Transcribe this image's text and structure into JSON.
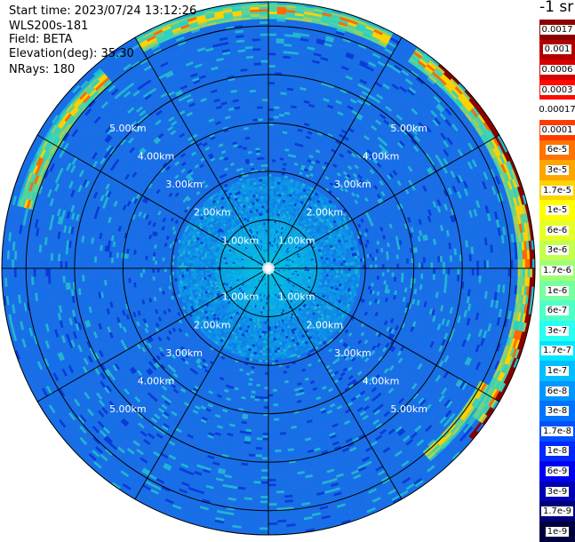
{
  "header": {
    "start_time": "Start time: 2023/07/24 13:12:26",
    "device": "WLS200s-181",
    "field": "Field: BETA",
    "elevation": "Elevation(deg): 35.30",
    "nrays": "NRays: 180"
  },
  "colorbar": {
    "unit_label": "-1 sr",
    "segments": [
      {
        "label": "0.0017",
        "color": "#8c0000"
      },
      {
        "label": "0.001",
        "color": "#b20000"
      },
      {
        "label": "0.0006",
        "color": "#d80000"
      },
      {
        "label": "0.0003",
        "color": "#ff0a00"
      },
      {
        "label": "0.00017",
        "color": "#ffffff"
      },
      {
        "label": "0.0001",
        "color": "#ff3c00"
      },
      {
        "label": "6e-5",
        "color": "#ff7300"
      },
      {
        "label": "3e-5",
        "color": "#ffa500"
      },
      {
        "label": "1.7e-5",
        "color": "#ffd200"
      },
      {
        "label": "1e-5",
        "color": "#ffff00"
      },
      {
        "label": "6e-6",
        "color": "#e6ff28"
      },
      {
        "label": "3e-6",
        "color": "#c3ff50"
      },
      {
        "label": "1.7e-6",
        "color": "#a0ff78"
      },
      {
        "label": "1e-6",
        "color": "#78ffa0"
      },
      {
        "label": "6e-7",
        "color": "#50ffc8"
      },
      {
        "label": "3e-7",
        "color": "#28fff0"
      },
      {
        "label": "1.7e-7",
        "color": "#00e6ff"
      },
      {
        "label": "1e-7",
        "color": "#00beff"
      },
      {
        "label": "6e-8",
        "color": "#0096ff"
      },
      {
        "label": "3e-8",
        "color": "#0073ff"
      },
      {
        "label": "1.7e-8",
        "color": "#0050ff"
      },
      {
        "label": "1e-8",
        "color": "#0028ff"
      },
      {
        "label": "6e-9",
        "color": "#0000f0"
      },
      {
        "label": "3e-9",
        "color": "#0000b4"
      },
      {
        "label": "1.7e-9",
        "color": "#000078"
      },
      {
        "label": "1e-9",
        "color": "#00003c"
      }
    ]
  },
  "chart_data": {
    "type": "heatmap",
    "projection": "polar",
    "radial_unit": "km",
    "max_range_km": 5.5,
    "ring_distances_km": [
      1,
      2,
      3,
      4,
      5
    ],
    "ring_labels": [
      "1.00km",
      "2.00km",
      "3.00km",
      "4.00km",
      "5.00km"
    ],
    "spoke_count": 12,
    "colors": {
      "background_field": "#1e6ee6",
      "near_field": "#00d2e6",
      "clean_air": "#1470e8",
      "arc_edge": "#28d2c8",
      "arc_core_high": "#ffd200",
      "arc_peak": "#ff6a00",
      "sector_rim": "#8c0000",
      "ring_color": "#000000",
      "ring_label_color": "#ffffff"
    },
    "features": [
      {
        "name": "aerosol-arc-north",
        "from_deg": 330,
        "to_deg": 28,
        "range_km": [
          5.15,
          5.5
        ]
      },
      {
        "name": "aerosol-arc-east",
        "from_deg": 35,
        "to_deg": 125,
        "range_km": [
          5.15,
          5.5
        ]
      },
      {
        "name": "aerosol-arc-west",
        "from_deg": 285,
        "to_deg": 320,
        "range_km": [
          5.0,
          5.35
        ]
      },
      {
        "name": "aerosol-patch-southeast",
        "from_deg": 118,
        "to_deg": 140,
        "range_km": [
          4.95,
          5.2
        ]
      }
    ]
  }
}
